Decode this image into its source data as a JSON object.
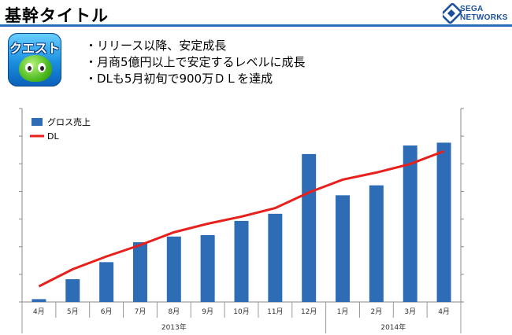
{
  "header": {
    "title": "基幹タイトル",
    "logo_text_1": "SEGA",
    "logo_text_2": "NETWORKS"
  },
  "app_icon": {
    "label": "クエスト"
  },
  "bullets": [
    "・リリース以降、安定成長",
    "・月商5億円以上で安定するレベルに成長",
    "・DLも5月初旬で900万ＤＬを達成"
  ],
  "colors": {
    "bar": "#2e6db5",
    "line": "#e8201b",
    "rule": "#2a6ebb"
  },
  "chart_data": {
    "type": "bar",
    "categories": [
      "4月",
      "5月",
      "6月",
      "7月",
      "8月",
      "9月",
      "10月",
      "11月",
      "12月",
      "1月",
      "2月",
      "3月",
      "4月"
    ],
    "year_groups": [
      {
        "label": "2013年",
        "span": 9
      },
      {
        "label": "2014年",
        "span": 4
      }
    ],
    "series": [
      {
        "name": "グロス売上",
        "type": "bar",
        "values": [
          2,
          16,
          28,
          42,
          46,
          47,
          57,
          62,
          104,
          75,
          82,
          110,
          112
        ]
      },
      {
        "name": "DL",
        "type": "line",
        "values": [
          11,
          23,
          32,
          40,
          49,
          55,
          60,
          66,
          77,
          86,
          91,
          97,
          106
        ]
      }
    ],
    "ylim": [
      0,
      136
    ],
    "grid": false,
    "legend": "top-left",
    "y_tick_labels_shown": false
  }
}
